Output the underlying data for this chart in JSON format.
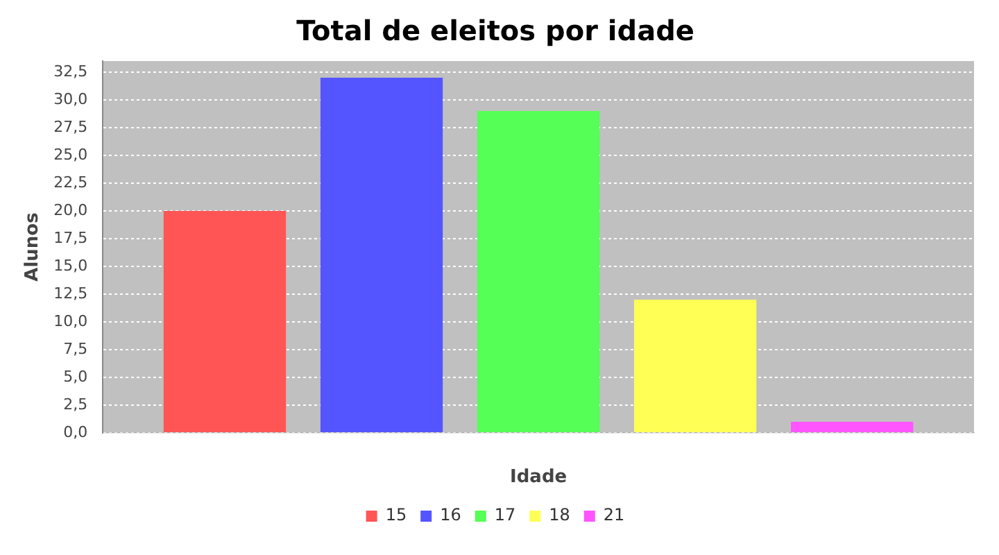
{
  "chart_data": {
    "type": "bar",
    "title": "Total de eleitos por idade",
    "xlabel": "Idade",
    "ylabel": "Alunos",
    "categories": [
      null
    ],
    "series": [
      {
        "name": "15",
        "color": "#ff5555",
        "values": [
          20
        ]
      },
      {
        "name": "16",
        "color": "#5555ff",
        "values": [
          32
        ]
      },
      {
        "name": "17",
        "color": "#55ff55",
        "values": [
          29
        ]
      },
      {
        "name": "18",
        "color": "#ffff55",
        "values": [
          12
        ]
      },
      {
        "name": "21",
        "color": "#ff55ff",
        "values": [
          1
        ]
      }
    ],
    "ylim": [
      0,
      33.5
    ],
    "yticks": [
      {
        "value": 0,
        "label": "0,0"
      },
      {
        "value": 2.5,
        "label": "2,5"
      },
      {
        "value": 5,
        "label": "5,0"
      },
      {
        "value": 7.5,
        "label": "7,5"
      },
      {
        "value": 10,
        "label": "10,0"
      },
      {
        "value": 12.5,
        "label": "12,5"
      },
      {
        "value": 15,
        "label": "15,0"
      },
      {
        "value": 17.5,
        "label": "17,5"
      },
      {
        "value": 20,
        "label": "20,0"
      },
      {
        "value": 22.5,
        "label": "22,5"
      },
      {
        "value": 25,
        "label": "25,0"
      },
      {
        "value": 27.5,
        "label": "27,5"
      },
      {
        "value": 30,
        "label": "30,0"
      },
      {
        "value": 32.5,
        "label": "32,5"
      }
    ],
    "grid": "y",
    "legend": "bottom"
  }
}
